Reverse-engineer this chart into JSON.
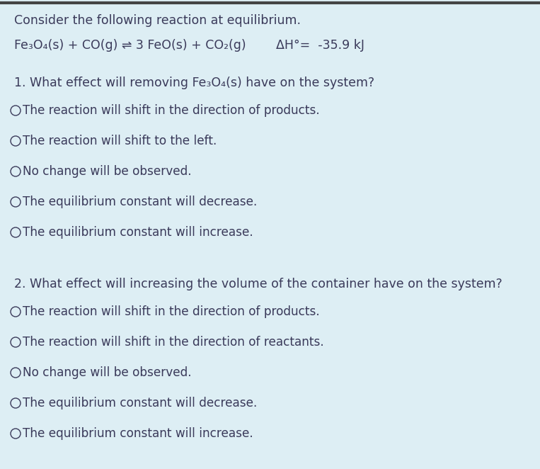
{
  "background_color": "#ddeef4",
  "top_border_color": "#444444",
  "text_color": "#3a3a5a",
  "header": "Consider the following reaction at equilibrium.",
  "reaction_text": "Fe₃O₄(s) + CO(g) ⇌ 3 FeO(s) + CO₂(g)",
  "delta_h": "ΔH°=  -35.9 kJ",
  "question1": "1. What effect will removing Fe₃O₄(s) have on the system?",
  "q1_options": [
    "The reaction will shift in the direction of products.",
    "The reaction will shift to the left.",
    "No change will be observed.",
    "The equilibrium constant will decrease.",
    "The equilibrium constant will increase."
  ],
  "question2": "2. What effect will increasing the volume of the container have on the system?",
  "q2_options": [
    "The reaction will shift in the direction of products.",
    "The reaction will shift in the direction of reactants.",
    "No change will be observed.",
    "The equilibrium constant will decrease.",
    "The equilibrium constant will increase."
  ],
  "font_size_header": 12.5,
  "font_size_reaction": 12.5,
  "font_size_question": 12.5,
  "font_size_option": 12.2,
  "figwidth": 7.63,
  "figheight": 6.62,
  "dpi": 100
}
